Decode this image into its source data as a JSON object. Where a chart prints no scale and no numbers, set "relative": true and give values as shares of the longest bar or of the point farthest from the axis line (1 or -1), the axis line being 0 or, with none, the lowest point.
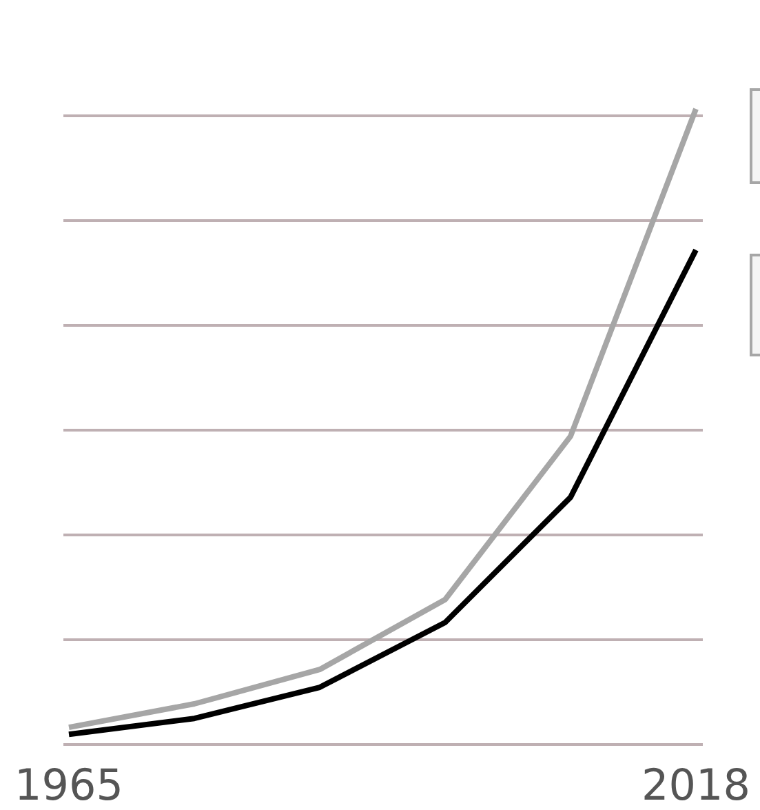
{
  "chart_data": {
    "type": "line",
    "relative": true,
    "categories": [
      "1965",
      null,
      null,
      null,
      null,
      "2018"
    ],
    "series": [
      {
        "color": "#a6a6a6",
        "values": [
          0.027,
          0.064,
          0.118,
          0.228,
          0.485,
          1
        ]
      },
      {
        "color": "#000000",
        "values": [
          0.016,
          0.041,
          0.09,
          0.192,
          0.389,
          0.778
        ]
      }
    ],
    "grid": "y",
    "line_style": "solid",
    "marker": "none"
  }
}
